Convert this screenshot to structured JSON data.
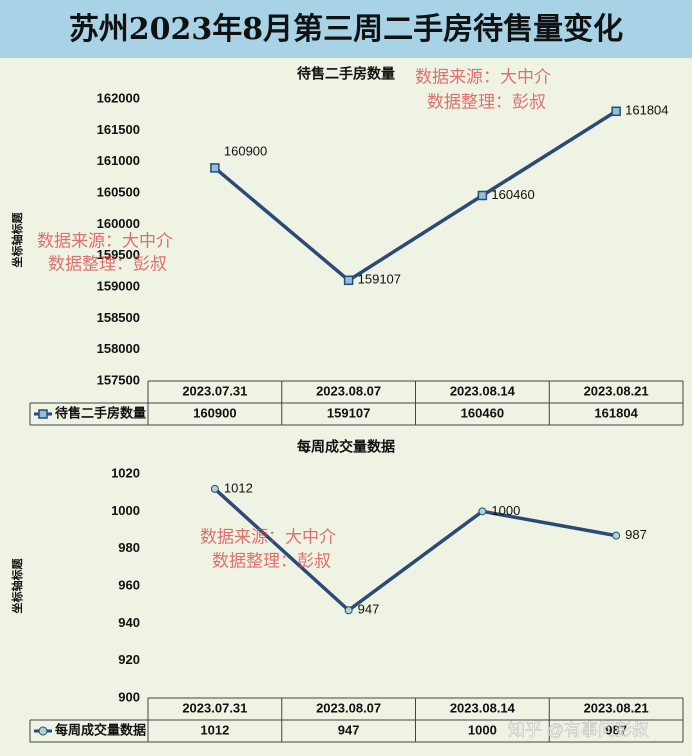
{
  "page_title": "苏州2023年8月第三周二手房待售量变化",
  "watermarks": [
    "数据来源：大中介",
    "数据整理：彭叔",
    "知乎 @有事问彭叔"
  ],
  "chart_data": [
    {
      "type": "line",
      "title": "待售二手房数量",
      "y_label": "坐标轴标题",
      "categories": [
        "2023.07.31",
        "2023.08.07",
        "2023.08.14",
        "2023.08.21"
      ],
      "series": [
        {
          "name": "待售二手房数量",
          "color": "#2b4a78",
          "marker": "square",
          "marker_color": "#8fc1d8",
          "values": [
            160900,
            159107,
            160460,
            161804
          ]
        }
      ],
      "ylim": [
        157500,
        162000
      ],
      "yticks": [
        157500,
        158000,
        158500,
        159000,
        159500,
        160000,
        160500,
        161000,
        161500,
        162000
      ],
      "grid": false
    },
    {
      "type": "line",
      "title": "每周成交量数据",
      "y_label": "坐标轴标题",
      "categories": [
        "2023.07.31",
        "2023.08.07",
        "2023.08.14",
        "2023.08.21"
      ],
      "series": [
        {
          "name": "每周成交量数据",
          "color": "#2b4a78",
          "marker": "circle",
          "marker_color": "#a9d6cf",
          "values": [
            1012,
            947,
            1000,
            987
          ]
        }
      ],
      "ylim": [
        900,
        1020
      ],
      "yticks": [
        900,
        920,
        940,
        960,
        980,
        1000,
        1020
      ],
      "grid": false
    }
  ]
}
